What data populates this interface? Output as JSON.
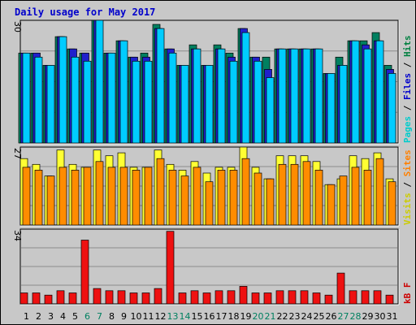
{
  "chart_data": {
    "type": "bar",
    "title": "Daily usage for May 2017",
    "categories": [
      "1",
      "2",
      "3",
      "4",
      "5",
      "6",
      "7",
      "8",
      "9",
      "10",
      "11",
      "12",
      "13",
      "14",
      "15",
      "16",
      "17",
      "18",
      "19",
      "20",
      "21",
      "22",
      "23",
      "24",
      "25",
      "26",
      "27",
      "28",
      "29",
      "30",
      "31"
    ],
    "weekend_days": [
      "6",
      "7",
      "13",
      "14",
      "20",
      "21",
      "27",
      "28"
    ],
    "panels": [
      {
        "name": "pages-files-hits",
        "ymax_label": "30",
        "ymax": 30,
        "legend": [
          {
            "text": "Pages",
            "color": "#00cccc"
          },
          {
            "text": "Files",
            "color": "#0000cc"
          },
          {
            "text": "Hits",
            "color": "#008040"
          }
        ],
        "legend_sep": " / ",
        "series": [
          {
            "name": "Hits",
            "color": "#008060",
            "values": [
              22,
              22,
              19,
              26,
              23,
              22,
              30,
              22,
              25,
              21,
              22,
              29,
              23,
              19,
              24,
              19,
              24,
              22,
              28,
              21,
              21,
              23,
              23,
              23,
              23,
              17,
              21,
              25,
              25,
              27,
              19
            ]
          },
          {
            "name": "Files",
            "color": "#2020cc",
            "values": [
              22,
              22,
              19,
              26,
              23,
              22,
              30,
              22,
              25,
              21,
              21,
              28,
              23,
              19,
              23,
              19,
              23,
              21,
              28,
              21,
              18,
              23,
              23,
              23,
              23,
              17,
              19,
              25,
              24,
              25,
              18
            ]
          },
          {
            "name": "Pages",
            "color": "#00ccff",
            "values": [
              22,
              21,
              19,
              26,
              21,
              20,
              30,
              22,
              25,
              20,
              20,
              28,
              22,
              19,
              23,
              19,
              23,
              20,
              27,
              20,
              16,
              23,
              23,
              23,
              23,
              17,
              19,
              25,
              23,
              25,
              17
            ]
          }
        ]
      },
      {
        "name": "visits-sites",
        "ymax_label": "27",
        "ymax": 27,
        "legend": [
          {
            "text": "Visits",
            "color": "#cccc00"
          },
          {
            "text": "Sites",
            "color": "#ff8000"
          }
        ],
        "legend_sep": " / ",
        "series": [
          {
            "name": "Visits",
            "color": "#ffff33",
            "values": [
              23,
              21,
              17,
              26,
              21,
              20,
              26,
              24,
              25,
              20,
              20,
              26,
              21,
              19,
              22,
              18,
              20,
              20,
              27,
              20,
              16,
              24,
              24,
              24,
              22,
              14,
              16,
              24,
              23,
              25,
              16
            ]
          },
          {
            "name": "Sites",
            "color": "#ff8c00",
            "values": [
              20,
              19,
              17,
              20,
              19,
              20,
              22,
              20,
              20,
              19,
              20,
              23,
              19,
              17,
              20,
              15,
              19,
              19,
              23,
              18,
              16,
              21,
              21,
              22,
              19,
              14,
              17,
              20,
              19,
              23,
              15
            ]
          }
        ]
      },
      {
        "name": "kbytes",
        "ymax_label": "34",
        "ymax": 34,
        "legend": [
          {
            "text": "kB F",
            "color": "#cc0000"
          }
        ],
        "legend_sep": "",
        "series": [
          {
            "name": "kB F",
            "color": "#ee1111",
            "values": [
              5,
              5,
              4,
              6,
              5,
              29,
              7,
              6,
              6,
              5,
              5,
              7,
              33,
              5,
              6,
              5,
              6,
              6,
              8,
              5,
              5,
              6,
              6,
              6,
              5,
              4,
              14,
              6,
              6,
              6,
              4
            ]
          }
        ]
      }
    ]
  }
}
